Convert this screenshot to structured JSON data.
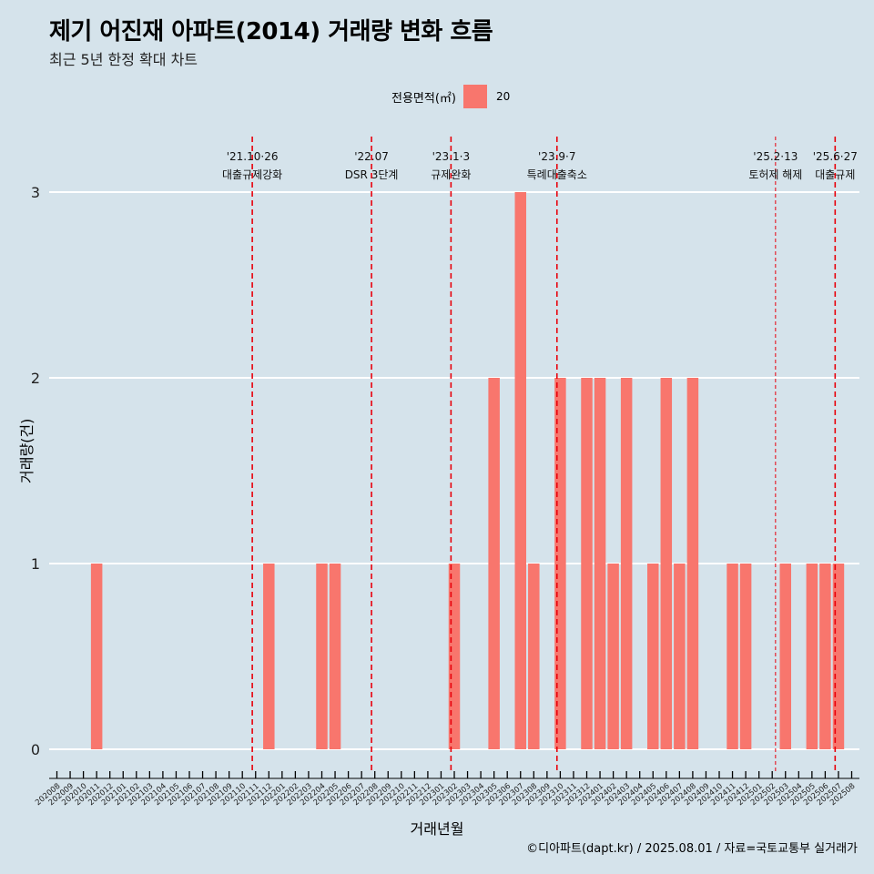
{
  "title": "제기 어진재 아파트(2014) 거래량 변화 흐름",
  "subtitle": "최근 5년 한정 확대 차트",
  "legend": {
    "title": "전용면적(㎡)",
    "label": "20",
    "color": "#f8766d"
  },
  "caption": "©디아파트(dapt.kr) / 2025.08.01 / 자료=국토교통부 실거래가",
  "chart_data": {
    "type": "bar",
    "title": "제기 어진재 아파트(2014) 거래량 변화 흐름",
    "subtitle": "최근 5년 한정 확대 차트",
    "xlabel": "거래년월",
    "ylabel": "거래량(건)",
    "ylim": [
      0,
      3
    ],
    "yticks": [
      0,
      1,
      2,
      3
    ],
    "grid": true,
    "legend_position": "top",
    "bar_color": "#f8766d",
    "categories": [
      "202008",
      "202009",
      "202010",
      "202011",
      "202012",
      "202101",
      "202102",
      "202103",
      "202104",
      "202105",
      "202106",
      "202107",
      "202108",
      "202109",
      "202110",
      "202111",
      "202112",
      "202201",
      "202202",
      "202203",
      "202204",
      "202205",
      "202206",
      "202207",
      "202208",
      "202209",
      "202210",
      "202211",
      "202212",
      "202301",
      "202302",
      "202303",
      "202304",
      "202305",
      "202306",
      "202307",
      "202308",
      "202309",
      "202310",
      "202311",
      "202312",
      "202401",
      "202402",
      "202403",
      "202404",
      "202405",
      "202406",
      "202407",
      "202408",
      "202409",
      "202410",
      "202411",
      "202412",
      "202501",
      "202502",
      "202503",
      "202504",
      "202505",
      "202506",
      "202507",
      "202508"
    ],
    "series": [
      {
        "name": "20",
        "values": [
          0,
          0,
          0,
          1,
          0,
          0,
          0,
          0,
          0,
          0,
          0,
          0,
          0,
          0,
          0,
          0,
          1,
          0,
          0,
          0,
          1,
          1,
          0,
          0,
          0,
          0,
          0,
          0,
          0,
          0,
          1,
          0,
          0,
          2,
          0,
          3,
          1,
          0,
          2,
          0,
          2,
          2,
          1,
          2,
          0,
          1,
          2,
          1,
          2,
          0,
          0,
          1,
          1,
          0,
          0,
          1,
          0,
          1,
          1,
          1,
          0
        ]
      }
    ],
    "annotations": [
      {
        "position": 14.75,
        "date": "'21.10·26",
        "text": "대출규제강화",
        "style": "dashed"
      },
      {
        "position": 23.75,
        "date": "'22.07",
        "text": "DSR 3단계",
        "style": "dashed"
      },
      {
        "position": 29.75,
        "date": "'23.1·3",
        "text": "규제완화",
        "style": "dashed"
      },
      {
        "position": 37.75,
        "date": "'23.9·7",
        "text": "특례대출축소",
        "style": "dashed"
      },
      {
        "position": 54.25,
        "date": "'25.2·13",
        "text": "토허제 해제",
        "style": "dashed-thin"
      },
      {
        "position": 58.75,
        "date": "'25.6·27",
        "text": "대출규제",
        "style": "dashed"
      }
    ]
  }
}
